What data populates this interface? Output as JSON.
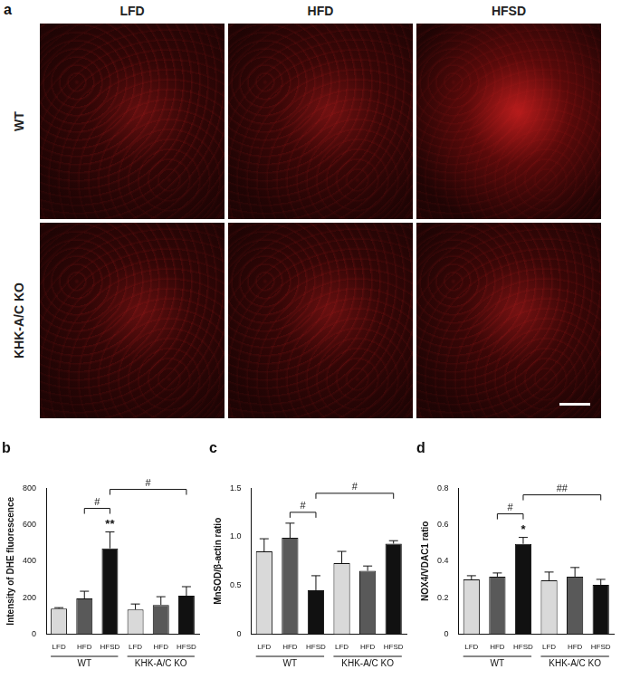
{
  "panel_a": {
    "label": "a",
    "columns": [
      "LFD",
      "HFD",
      "HFSD"
    ],
    "rows": [
      "WT",
      "KHK-A/C KO"
    ]
  },
  "chart_data": [
    {
      "type": "bar",
      "title": "b",
      "y_label": "Intensity of DHE fluorescence",
      "categories": [
        "LFD",
        "HFD",
        "HFSD",
        "LFD",
        "HFD",
        "HFSD"
      ],
      "groups": [
        "WT",
        "KHK-A/C KO"
      ],
      "values": [
        140,
        195,
        470,
        135,
        160,
        210
      ],
      "errors": [
        5,
        40,
        90,
        30,
        45,
        50
      ],
      "colors": [
        "#d9d9d9",
        "#595959",
        "#111111",
        "#d9d9d9",
        "#595959",
        "#111111"
      ],
      "ylim": [
        0,
        800
      ],
      "yticks": [
        0,
        200,
        400,
        600,
        800
      ],
      "grid": false,
      "annotations": [
        {
          "text": "**",
          "at": 2
        },
        {
          "text": "#",
          "from": 1,
          "to": 2
        },
        {
          "text": "#",
          "from": 2,
          "to": 5
        }
      ]
    },
    {
      "type": "bar",
      "title": "c",
      "y_label": "MnSOD/β-actin ratio",
      "categories": [
        "LFD",
        "HFD",
        "HFSD",
        "LFD",
        "HFD",
        "HFSD"
      ],
      "groups": [
        "WT",
        "KHK-A/C KO"
      ],
      "values": [
        0.85,
        0.99,
        0.45,
        0.73,
        0.65,
        0.93
      ],
      "errors": [
        0.13,
        0.15,
        0.15,
        0.12,
        0.05,
        0.03
      ],
      "colors": [
        "#d9d9d9",
        "#595959",
        "#111111",
        "#d9d9d9",
        "#595959",
        "#111111"
      ],
      "ylim": [
        0,
        1.5
      ],
      "yticks": [
        0,
        0.5,
        {
          "value": 1,
          "label": "1.0"
        },
        1.5
      ],
      "grid": false,
      "annotations": [
        {
          "text": "#",
          "from": 1,
          "to": 2
        },
        {
          "text": "#",
          "from": 2,
          "to": 5
        }
      ]
    },
    {
      "type": "bar",
      "title": "d",
      "y_label": "NOX4/VDAC1 ratio",
      "categories": [
        "LFD",
        "HFD",
        "HFSD",
        "LFD",
        "HFD",
        "HFSD"
      ],
      "groups": [
        "WT",
        "KHK-A/C KO"
      ],
      "values": [
        0.3,
        0.315,
        0.495,
        0.295,
        0.315,
        0.27
      ],
      "errors": [
        0.02,
        0.02,
        0.035,
        0.045,
        0.05,
        0.03
      ],
      "colors": [
        "#d9d9d9",
        "#595959",
        "#111111",
        "#d9d9d9",
        "#595959",
        "#111111"
      ],
      "ylim": [
        0,
        0.8
      ],
      "yticks": [
        0,
        0.2,
        0.4,
        0.6,
        0.8
      ],
      "grid": false,
      "annotations": [
        {
          "text": "*",
          "at": 2
        },
        {
          "text": "#",
          "from": 1,
          "to": 2
        },
        {
          "text": "##",
          "from": 2,
          "to": 5
        }
      ]
    }
  ]
}
